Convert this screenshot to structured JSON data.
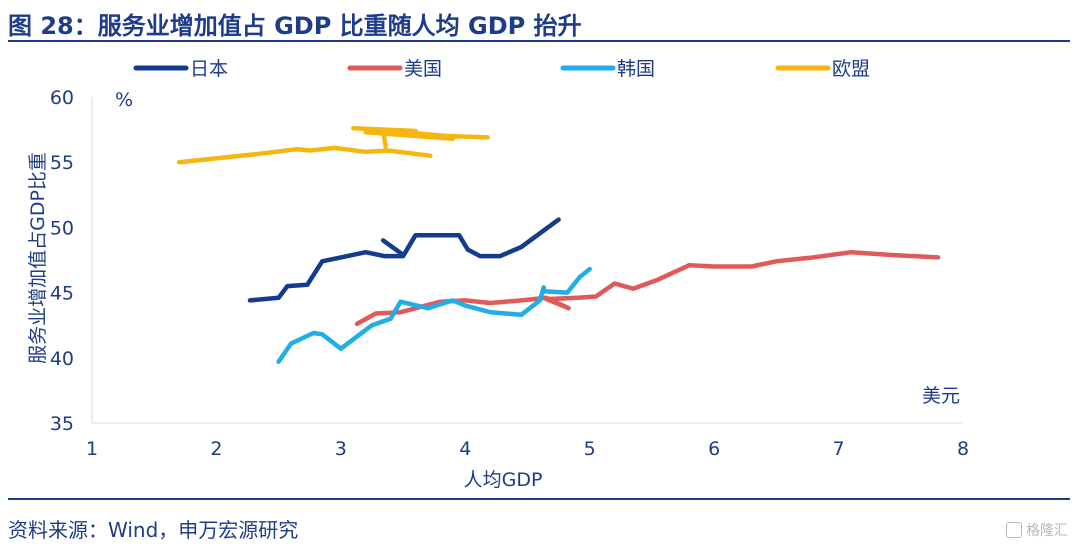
{
  "title": "图 28：服务业增加值占 GDP 比重随人均 GDP 抬升",
  "source": "资料来源：Wind，申万宏源研究",
  "watermark": "格隆汇",
  "chart_data": {
    "type": "line",
    "xlabel": "人均GDP",
    "ylabel": "服务业增加值占GDP比重",
    "x_unit": "美元",
    "y_unit": "%",
    "xlim": [
      1,
      8
    ],
    "ylim": [
      35,
      60
    ],
    "xticks": [
      1,
      2,
      3,
      4,
      5,
      6,
      7,
      8
    ],
    "yticks": [
      35,
      40,
      45,
      50,
      55,
      60
    ],
    "grid": false,
    "legend_position": "top",
    "series": [
      {
        "name": "日本",
        "color": "#143b8c",
        "points": [
          [
            2.27,
            44.4
          ],
          [
            2.5,
            44.6
          ],
          [
            2.57,
            45.5
          ],
          [
            2.73,
            45.6
          ],
          [
            2.85,
            47.4
          ],
          [
            3.0,
            47.7
          ],
          [
            3.2,
            48.1
          ],
          [
            3.35,
            47.8
          ],
          [
            3.5,
            47.8
          ],
          [
            3.6,
            49.4
          ],
          [
            3.78,
            49.4
          ],
          [
            3.95,
            49.4
          ],
          [
            4.02,
            48.3
          ],
          [
            4.12,
            47.8
          ],
          [
            4.28,
            47.8
          ],
          [
            4.45,
            48.5
          ],
          [
            4.75,
            50.6
          ]
        ],
        "segments": [
          [
            3.34,
            49.0,
            3.5,
            47.9
          ]
        ]
      },
      {
        "name": "美国",
        "color": "#e05a5a",
        "points": [
          [
            3.13,
            42.6
          ],
          [
            3.28,
            43.4
          ],
          [
            3.48,
            43.5
          ],
          [
            3.8,
            44.3
          ],
          [
            4.0,
            44.4
          ],
          [
            4.2,
            44.2
          ],
          [
            4.45,
            44.4
          ],
          [
            4.65,
            44.6
          ],
          [
            4.83,
            43.8
          ],
          [
            4.65,
            44.5
          ],
          [
            4.9,
            44.6
          ],
          [
            5.05,
            44.7
          ],
          [
            5.2,
            45.7
          ],
          [
            5.35,
            45.3
          ],
          [
            5.55,
            46.0
          ],
          [
            5.8,
            47.1
          ],
          [
            6.0,
            47.0
          ],
          [
            6.3,
            47.0
          ],
          [
            6.5,
            47.4
          ],
          [
            6.8,
            47.7
          ],
          [
            7.1,
            48.1
          ],
          [
            7.4,
            47.9
          ],
          [
            7.8,
            47.7
          ]
        ]
      },
      {
        "name": "韩国",
        "color": "#21aee6",
        "points": [
          [
            2.5,
            39.7
          ],
          [
            2.6,
            41.1
          ],
          [
            2.78,
            41.9
          ],
          [
            2.85,
            41.8
          ],
          [
            3.0,
            40.7
          ],
          [
            3.25,
            42.5
          ],
          [
            3.4,
            43.0
          ],
          [
            3.48,
            44.3
          ],
          [
            3.7,
            43.8
          ],
          [
            3.9,
            44.4
          ],
          [
            4.0,
            44.0
          ],
          [
            4.2,
            43.5
          ],
          [
            4.45,
            43.3
          ],
          [
            4.6,
            44.4
          ],
          [
            4.63,
            45.4
          ],
          [
            4.63,
            45.1
          ],
          [
            4.82,
            45.0
          ],
          [
            4.92,
            46.2
          ],
          [
            5.0,
            46.8
          ]
        ]
      },
      {
        "name": "欧盟",
        "color": "#f5b70f",
        "points": [
          [
            1.7,
            55.0
          ],
          [
            2.3,
            55.6
          ],
          [
            2.65,
            56.0
          ],
          [
            2.75,
            55.9
          ],
          [
            2.95,
            56.1
          ],
          [
            3.2,
            55.8
          ],
          [
            3.38,
            55.9
          ],
          [
            3.72,
            55.5
          ]
        ],
        "segments": [
          [
            3.1,
            57.6,
            3.6,
            57.4
          ],
          [
            3.2,
            57.3,
            3.9,
            56.8
          ],
          [
            3.4,
            57.4,
            3.85,
            57.0
          ],
          [
            3.6,
            57.1,
            4.18,
            56.9
          ],
          [
            3.34,
            57.5,
            3.36,
            56.2
          ]
        ]
      }
    ]
  }
}
